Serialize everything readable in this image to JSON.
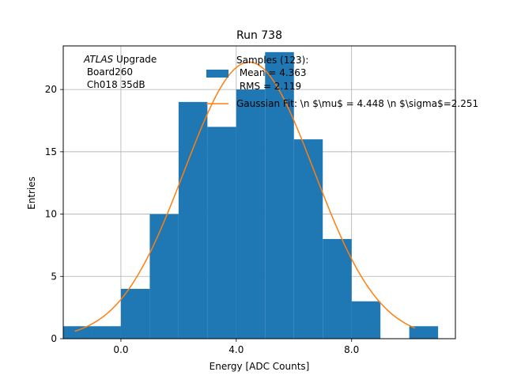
{
  "chart_data": {
    "type": "bar",
    "title": "Run 738",
    "xlabel": "Energy [ADC Counts]",
    "ylabel": "Entries",
    "xlim": [
      -2.0,
      11.6
    ],
    "ylim": [
      0,
      23.5
    ],
    "grid": true,
    "x_ticks": [
      0,
      4,
      8
    ],
    "x_tick_labels": [
      "0.0",
      "4.0",
      "8.0"
    ],
    "y_ticks": [
      0,
      5,
      10,
      15,
      20
    ],
    "y_tick_labels": [
      "0",
      "5",
      "10",
      "15",
      "20"
    ],
    "bins": [
      {
        "start": -2,
        "end": -1,
        "count": 1
      },
      {
        "start": -1,
        "end": 0,
        "count": 1
      },
      {
        "start": 0,
        "end": 1,
        "count": 4
      },
      {
        "start": 1,
        "end": 2,
        "count": 10
      },
      {
        "start": 2,
        "end": 3,
        "count": 19
      },
      {
        "start": 3,
        "end": 4,
        "count": 17
      },
      {
        "start": 4,
        "end": 5,
        "count": 20
      },
      {
        "start": 5,
        "end": 6,
        "count": 23
      },
      {
        "start": 6,
        "end": 7,
        "count": 16
      },
      {
        "start": 7,
        "end": 8,
        "count": 8
      },
      {
        "start": 8,
        "end": 9,
        "count": 3
      },
      {
        "start": 9,
        "end": 10,
        "count": 0
      },
      {
        "start": 10,
        "end": 11,
        "count": 1
      }
    ],
    "fit": {
      "type": "gaussian",
      "mu": 4.448,
      "sigma": 2.251,
      "amplitude": 22.2,
      "x_range": [
        -1.6,
        10.2
      ]
    },
    "colors": {
      "bars": "#1f77b4",
      "fit": "#ff7f0e",
      "grid": "#b0b0b0"
    },
    "legend": {
      "placement": "top-center",
      "histogram_label_lines": [
        "Samples (123):",
        " Mean = 4.363",
        " RMS = 2.119"
      ],
      "fit_label": "Gaussian Fit: \\n $\\mu$ = 4.448 \\n $\\sigma$=2.251"
    },
    "annotation": {
      "atlas": "ATLAS",
      "upgrade": " Upgrade",
      "board": " Board260",
      "channel": " Ch018 35dB"
    }
  }
}
